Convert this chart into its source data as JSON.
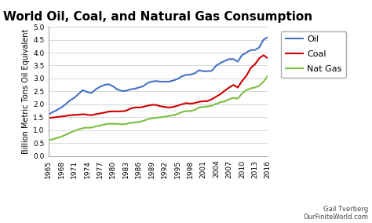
{
  "title": "World Oil, Coal, and Natural Gas Consumption",
  "ylabel": "Billion Metric Tons Oil Equivalent",
  "attribution_line1": "Gail Tverberg",
  "attribution_line2": "OurFiniteWorld.com",
  "ylim": [
    0.0,
    5.0
  ],
  "yticks": [
    0.0,
    0.5,
    1.0,
    1.5,
    2.0,
    2.5,
    3.0,
    3.5,
    4.0,
    4.5,
    5.0
  ],
  "years": [
    1965,
    1966,
    1967,
    1968,
    1969,
    1970,
    1971,
    1972,
    1973,
    1974,
    1975,
    1976,
    1977,
    1978,
    1979,
    1980,
    1981,
    1982,
    1983,
    1984,
    1985,
    1986,
    1987,
    1988,
    1989,
    1990,
    1991,
    1992,
    1993,
    1994,
    1995,
    1996,
    1997,
    1998,
    1999,
    2000,
    2001,
    2002,
    2003,
    2004,
    2005,
    2006,
    2007,
    2008,
    2009,
    2010,
    2011,
    2012,
    2013,
    2014,
    2015,
    2016
  ],
  "oil": [
    1.6,
    1.7,
    1.78,
    1.88,
    2.0,
    2.15,
    2.25,
    2.4,
    2.55,
    2.48,
    2.44,
    2.58,
    2.68,
    2.75,
    2.78,
    2.7,
    2.58,
    2.52,
    2.52,
    2.58,
    2.6,
    2.65,
    2.7,
    2.82,
    2.88,
    2.9,
    2.88,
    2.88,
    2.88,
    2.92,
    2.98,
    3.08,
    3.14,
    3.15,
    3.2,
    3.32,
    3.28,
    3.28,
    3.3,
    3.5,
    3.6,
    3.68,
    3.75,
    3.75,
    3.65,
    3.9,
    4.0,
    4.1,
    4.1,
    4.2,
    4.5,
    4.6
  ],
  "coal": [
    1.47,
    1.49,
    1.51,
    1.53,
    1.55,
    1.58,
    1.59,
    1.6,
    1.62,
    1.6,
    1.58,
    1.62,
    1.65,
    1.68,
    1.72,
    1.73,
    1.73,
    1.73,
    1.75,
    1.83,
    1.88,
    1.88,
    1.9,
    1.95,
    1.98,
    1.98,
    1.93,
    1.9,
    1.88,
    1.9,
    1.95,
    2.0,
    2.05,
    2.03,
    2.05,
    2.1,
    2.12,
    2.13,
    2.2,
    2.3,
    2.4,
    2.53,
    2.65,
    2.75,
    2.65,
    2.9,
    3.1,
    3.4,
    3.55,
    3.78,
    3.9,
    3.78
  ],
  "natgas": [
    0.6,
    0.65,
    0.7,
    0.75,
    0.82,
    0.9,
    0.97,
    1.03,
    1.08,
    1.1,
    1.1,
    1.15,
    1.18,
    1.22,
    1.25,
    1.25,
    1.25,
    1.23,
    1.24,
    1.28,
    1.3,
    1.32,
    1.36,
    1.42,
    1.46,
    1.48,
    1.5,
    1.52,
    1.55,
    1.58,
    1.63,
    1.7,
    1.74,
    1.74,
    1.78,
    1.88,
    1.9,
    1.92,
    1.95,
    2.02,
    2.08,
    2.12,
    2.2,
    2.25,
    2.22,
    2.42,
    2.55,
    2.62,
    2.65,
    2.72,
    2.88,
    3.1
  ],
  "oil_color": "#4472C4",
  "coal_color": "#CC0000",
  "natgas_color": "#7CBF3F",
  "bg_color": "#FFFFFF",
  "plot_bg_color": "#FFFFFF",
  "grid_color": "#C8C8C8",
  "xtick_years": [
    1965,
    1968,
    1971,
    1974,
    1977,
    1980,
    1983,
    1986,
    1989,
    1992,
    1995,
    1998,
    2001,
    2004,
    2007,
    2010,
    2013,
    2016
  ],
  "title_fontsize": 11,
  "label_fontsize": 7,
  "tick_fontsize": 6.5,
  "legend_fontsize": 8,
  "linewidth": 1.5
}
